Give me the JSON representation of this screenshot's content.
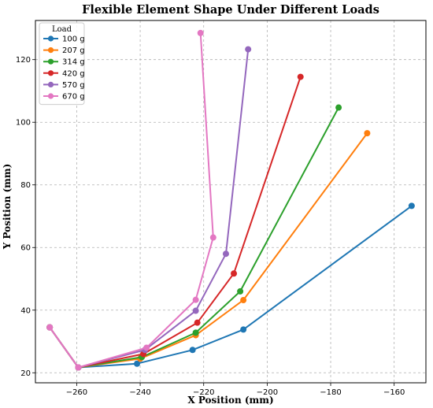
{
  "chart_data": {
    "type": "line",
    "title": "Flexible Element Shape Under Different Loads",
    "xlabel": "X Position (mm)",
    "ylabel": "Y Position (mm)",
    "xlim": [
      -273,
      -150
    ],
    "ylim": [
      16.8,
      132.5
    ],
    "xticks": [
      -260,
      -240,
      -220,
      -200,
      -180,
      -160
    ],
    "yticks": [
      20,
      40,
      60,
      80,
      100,
      120
    ],
    "grid": true,
    "legend": {
      "title": "Load",
      "placement": "top-left"
    },
    "series": [
      {
        "name": "100 g",
        "color": "#1f77b4",
        "points": [
          [
            -268.5,
            34.5
          ],
          [
            -259.5,
            21.7
          ],
          [
            -241,
            22.9
          ],
          [
            -223.5,
            27.3
          ],
          [
            -207.5,
            33.8
          ],
          [
            -154.5,
            73.3
          ]
        ]
      },
      {
        "name": "207 g",
        "color": "#ff7f0e",
        "points": [
          [
            -268.5,
            34.5
          ],
          [
            -259.5,
            21.7
          ],
          [
            -240,
            24.5
          ],
          [
            -222.5,
            32.0
          ],
          [
            -207.5,
            43.2
          ],
          [
            -168.5,
            96.5
          ]
        ]
      },
      {
        "name": "314 g",
        "color": "#2ca02c",
        "points": [
          [
            -268.5,
            34.5
          ],
          [
            -259.5,
            21.7
          ],
          [
            -239.5,
            25.0
          ],
          [
            -222.5,
            32.8
          ],
          [
            -208.5,
            46.0
          ],
          [
            -177.5,
            104.7
          ]
        ]
      },
      {
        "name": "420 g",
        "color": "#d62728",
        "points": [
          [
            -268.5,
            34.5
          ],
          [
            -259.5,
            21.7
          ],
          [
            -239,
            26.0
          ],
          [
            -222,
            36.0
          ],
          [
            -210.5,
            51.7
          ],
          [
            -189.5,
            114.5
          ]
        ]
      },
      {
        "name": "570 g",
        "color": "#9467bd",
        "points": [
          [
            -268.5,
            34.5
          ],
          [
            -259.5,
            21.7
          ],
          [
            -238.5,
            27.3
          ],
          [
            -222.5,
            39.8
          ],
          [
            -213,
            58.0
          ],
          [
            -206,
            123.3
          ]
        ]
      },
      {
        "name": "670 g",
        "color": "#e377c2",
        "points": [
          [
            -268.5,
            34.5
          ],
          [
            -259.5,
            21.7
          ],
          [
            -238,
            28.0
          ],
          [
            -222.5,
            43.3
          ],
          [
            -217,
            63.2
          ],
          [
            -221,
            128.5
          ]
        ]
      }
    ]
  }
}
